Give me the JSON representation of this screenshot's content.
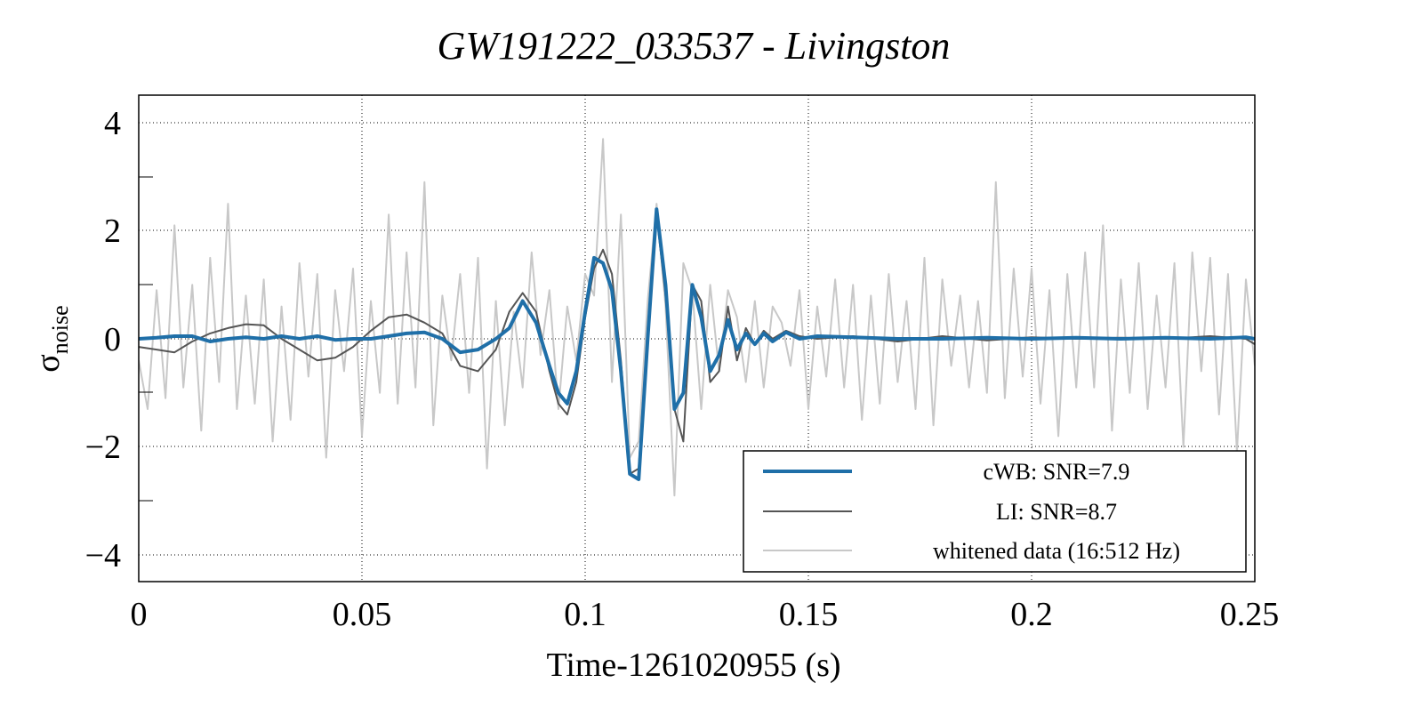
{
  "chart_data": {
    "type": "line",
    "title": "GW191222_033537 - Livingston",
    "xlabel": "Time-1261020955 (s)",
    "ylabel": "σ",
    "ylabel_subscript": "noise",
    "xlim": [
      0,
      0.25
    ],
    "ylim": [
      -4.5,
      4.5
    ],
    "xticks": [
      0,
      0.05,
      0.1,
      0.15,
      0.2,
      0.25
    ],
    "xtick_labels": [
      "0",
      "0.05",
      "0.1",
      "0.15",
      "0.2",
      "0.25"
    ],
    "yticks": [
      4,
      2,
      0,
      -2,
      -4
    ],
    "ytick_labels": [
      "4",
      "2",
      "0",
      "−2",
      "−4"
    ],
    "grid": true,
    "legend_position": "bottom-right",
    "series": [
      {
        "name": "whitened data (16:512 Hz)",
        "legend_label": "whitened data (16:512 Hz)",
        "color": "#c8c8c8",
        "x": [
          0.0,
          0.002,
          0.004,
          0.006,
          0.008,
          0.01,
          0.012,
          0.014,
          0.016,
          0.018,
          0.02,
          0.022,
          0.024,
          0.026,
          0.028,
          0.03,
          0.032,
          0.034,
          0.036,
          0.038,
          0.04,
          0.042,
          0.044,
          0.046,
          0.048,
          0.05,
          0.052,
          0.054,
          0.056,
          0.058,
          0.06,
          0.062,
          0.064,
          0.066,
          0.068,
          0.07,
          0.072,
          0.074,
          0.076,
          0.078,
          0.08,
          0.082,
          0.084,
          0.086,
          0.088,
          0.09,
          0.092,
          0.094,
          0.096,
          0.098,
          0.1,
          0.102,
          0.104,
          0.106,
          0.108,
          0.11,
          0.112,
          0.114,
          0.116,
          0.118,
          0.12,
          0.122,
          0.124,
          0.126,
          0.128,
          0.13,
          0.132,
          0.134,
          0.136,
          0.138,
          0.14,
          0.142,
          0.144,
          0.146,
          0.148,
          0.15,
          0.152,
          0.154,
          0.156,
          0.158,
          0.16,
          0.162,
          0.164,
          0.166,
          0.168,
          0.17,
          0.172,
          0.174,
          0.176,
          0.178,
          0.18,
          0.182,
          0.184,
          0.186,
          0.188,
          0.19,
          0.192,
          0.194,
          0.196,
          0.198,
          0.2,
          0.202,
          0.204,
          0.206,
          0.208,
          0.21,
          0.212,
          0.214,
          0.216,
          0.218,
          0.22,
          0.222,
          0.224,
          0.226,
          0.228,
          0.23,
          0.232,
          0.234,
          0.236,
          0.238,
          0.24,
          0.242,
          0.244,
          0.246,
          0.248,
          0.25
        ],
        "y": [
          -0.4,
          -1.3,
          0.9,
          -1.1,
          2.1,
          -0.9,
          1.0,
          -1.7,
          1.5,
          -0.8,
          2.5,
          -1.3,
          0.8,
          -1.2,
          1.1,
          -1.9,
          0.6,
          -1.5,
          1.4,
          -0.7,
          1.2,
          -2.2,
          0.9,
          -0.6,
          1.3,
          -1.8,
          0.7,
          -1.0,
          2.3,
          -1.2,
          1.6,
          -0.9,
          2.9,
          -1.6,
          0.8,
          -0.4,
          1.2,
          -1.0,
          1.5,
          -2.4,
          0.7,
          -1.6,
          0.5,
          -0.9,
          1.6,
          -0.3,
          0.9,
          -1.3,
          0.6,
          -0.4,
          1.2,
          0.8,
          3.7,
          -0.8,
          2.3,
          -2.2,
          -1.9,
          0.7,
          2.5,
          0.6,
          -2.9,
          1.4,
          0.9,
          -1.3,
          1.0,
          -0.6,
          0.9,
          0.4,
          -0.8,
          0.7,
          -0.9,
          0.6,
          0.3,
          -0.5,
          0.9,
          -1.3,
          0.6,
          -0.7,
          1.1,
          -0.9,
          1.0,
          -1.5,
          0.8,
          -1.2,
          1.2,
          -0.8,
          0.7,
          -1.3,
          1.5,
          -1.6,
          1.1,
          -0.5,
          0.8,
          -0.9,
          0.7,
          -1.0,
          2.9,
          -1.1,
          1.3,
          -0.7,
          1.3,
          -1.2,
          0.9,
          -1.8,
          1.2,
          -0.9,
          1.6,
          -0.9,
          2.1,
          -1.7,
          1.1,
          -1.0,
          1.4,
          -1.3,
          0.8,
          -0.9,
          1.4,
          -2.0,
          1.6,
          -0.6,
          1.5,
          -1.4,
          1.2,
          -2.1,
          1.1,
          -0.5
        ]
      },
      {
        "name": "LI: SNR=8.7",
        "legend_label": "LI: SNR=8.7",
        "color": "#555555",
        "x": [
          0.0,
          0.004,
          0.008,
          0.012,
          0.016,
          0.02,
          0.024,
          0.028,
          0.032,
          0.036,
          0.04,
          0.044,
          0.048,
          0.052,
          0.056,
          0.06,
          0.064,
          0.068,
          0.072,
          0.076,
          0.08,
          0.083,
          0.086,
          0.089,
          0.092,
          0.094,
          0.096,
          0.098,
          0.1,
          0.102,
          0.104,
          0.106,
          0.108,
          0.11,
          0.112,
          0.114,
          0.116,
          0.118,
          0.12,
          0.122,
          0.124,
          0.126,
          0.128,
          0.13,
          0.132,
          0.134,
          0.136,
          0.138,
          0.14,
          0.142,
          0.145,
          0.148,
          0.152,
          0.16,
          0.17,
          0.18,
          0.19,
          0.2,
          0.21,
          0.22,
          0.23,
          0.24,
          0.248,
          0.25
        ],
        "y": [
          -0.15,
          -0.2,
          -0.25,
          -0.05,
          0.1,
          0.2,
          0.27,
          0.25,
          0.0,
          -0.2,
          -0.4,
          -0.35,
          -0.15,
          0.15,
          0.4,
          0.45,
          0.3,
          0.1,
          -0.5,
          -0.6,
          -0.2,
          0.5,
          0.85,
          0.5,
          -0.6,
          -1.2,
          -1.4,
          -0.8,
          0.4,
          1.3,
          1.65,
          1.2,
          -0.4,
          -2.5,
          -2.4,
          0.2,
          2.3,
          0.8,
          -1.3,
          -1.9,
          1.0,
          0.7,
          -0.8,
          -0.6,
          0.6,
          -0.4,
          0.2,
          -0.1,
          0.15,
          0.0,
          0.15,
          0.05,
          0.0,
          0.05,
          -0.05,
          0.05,
          -0.03,
          0.03,
          0.0,
          0.02,
          0.0,
          0.05,
          0.0,
          -0.1
        ]
      },
      {
        "name": "cWB: SNR=7.9",
        "legend_label": "cWB: SNR=7.9",
        "color": "#1f6fa8",
        "x": [
          0.0,
          0.004,
          0.008,
          0.012,
          0.016,
          0.02,
          0.024,
          0.028,
          0.032,
          0.036,
          0.04,
          0.044,
          0.048,
          0.052,
          0.056,
          0.06,
          0.064,
          0.068,
          0.072,
          0.076,
          0.08,
          0.083,
          0.086,
          0.089,
          0.092,
          0.094,
          0.096,
          0.098,
          0.1,
          0.102,
          0.104,
          0.106,
          0.108,
          0.11,
          0.112,
          0.114,
          0.116,
          0.118,
          0.12,
          0.122,
          0.124,
          0.126,
          0.128,
          0.13,
          0.132,
          0.134,
          0.136,
          0.138,
          0.14,
          0.142,
          0.145,
          0.148,
          0.152,
          0.16,
          0.17,
          0.18,
          0.19,
          0.2,
          0.21,
          0.22,
          0.23,
          0.24,
          0.248,
          0.25
        ],
        "y": [
          0.0,
          0.02,
          0.05,
          0.05,
          -0.05,
          0.0,
          0.03,
          0.0,
          0.05,
          0.0,
          0.05,
          -0.02,
          0.0,
          0.0,
          0.05,
          0.1,
          0.12,
          0.0,
          -0.25,
          -0.2,
          0.0,
          0.2,
          0.7,
          0.3,
          -0.5,
          -1.0,
          -1.2,
          -0.6,
          0.5,
          1.5,
          1.4,
          0.9,
          -0.6,
          -2.5,
          -2.6,
          0.0,
          2.4,
          1.0,
          -1.3,
          -1.0,
          1.0,
          0.4,
          -0.6,
          -0.3,
          0.35,
          -0.2,
          0.1,
          -0.1,
          0.1,
          -0.05,
          0.12,
          0.0,
          0.05,
          0.03,
          0.0,
          0.0,
          0.02,
          0.0,
          0.02,
          0.0,
          0.02,
          0.0,
          0.03,
          0.0
        ]
      }
    ]
  }
}
